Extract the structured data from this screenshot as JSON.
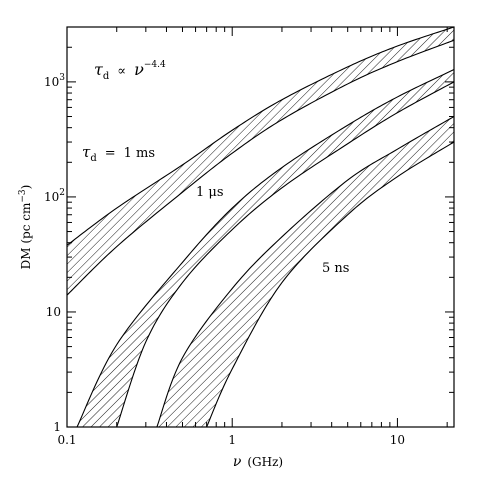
{
  "chart_data": {
    "type": "area",
    "title": "",
    "xlabel": {
      "symbol": "ν",
      "unit": "(GHz)"
    },
    "ylabel": {
      "text": "DM (pc cm",
      "sup": "−3",
      "close": ")"
    },
    "x_scale": "log",
    "y_scale": "log",
    "xlim": [
      0.1,
      22
    ],
    "ylim": [
      1,
      3000
    ],
    "x_ticks": [
      {
        "value": 0.1,
        "label": "0.1"
      },
      {
        "value": 1,
        "label": "1"
      },
      {
        "value": 10,
        "label": "10"
      }
    ],
    "y_ticks": [
      {
        "value": 1,
        "label": "1"
      },
      {
        "value": 10,
        "label": "10"
      },
      {
        "value": 100,
        "label": "10",
        "sup": "2"
      },
      {
        "value": 1000,
        "label": "10",
        "sup": "3"
      }
    ],
    "relation": {
      "lhs": "τ",
      "lhs_sub": "d",
      "op": "∝",
      "rhs": "ν",
      "rhs_sup": "−4.4"
    },
    "band_label_prefix": {
      "lhs": "τ",
      "lhs_sub": "d",
      "op": "="
    },
    "bands": [
      {
        "label": "1 ms",
        "lower": {
          "x": [
            0.1,
            0.2,
            0.5,
            1,
            2,
            5,
            10,
            22
          ],
          "y": [
            14,
            37,
            110,
            240,
            470,
            960,
            1500,
            2300
          ]
        },
        "upper": {
          "x": [
            0.1,
            0.2,
            0.5,
            1,
            2,
            5,
            10,
            22
          ],
          "y": [
            38,
            80,
            190,
            380,
            700,
            1350,
            2050,
            3000
          ]
        }
      },
      {
        "label": "1 μs",
        "lower": {
          "x": [
            0.2,
            0.3,
            0.5,
            1,
            2,
            5,
            10,
            22
          ],
          "y": [
            1,
            5.5,
            18,
            52,
            120,
            290,
            540,
            1000
          ]
        },
        "upper": {
          "x": [
            0.115,
            0.2,
            0.5,
            1,
            2,
            5,
            10,
            22
          ],
          "y": [
            1,
            5.2,
            27,
            80,
            180,
            420,
            740,
            1280
          ]
        }
      },
      {
        "label": "5 ns",
        "lower": {
          "x": [
            0.7,
            1,
            2,
            5,
            10,
            22
          ],
          "y": [
            1,
            3.2,
            18,
            70,
            150,
            300
          ]
        },
        "upper": {
          "x": [
            0.35,
            0.5,
            1,
            2,
            5,
            10,
            22
          ],
          "y": [
            1,
            4,
            16,
            45,
            140,
            260,
            500
          ]
        }
      }
    ]
  }
}
